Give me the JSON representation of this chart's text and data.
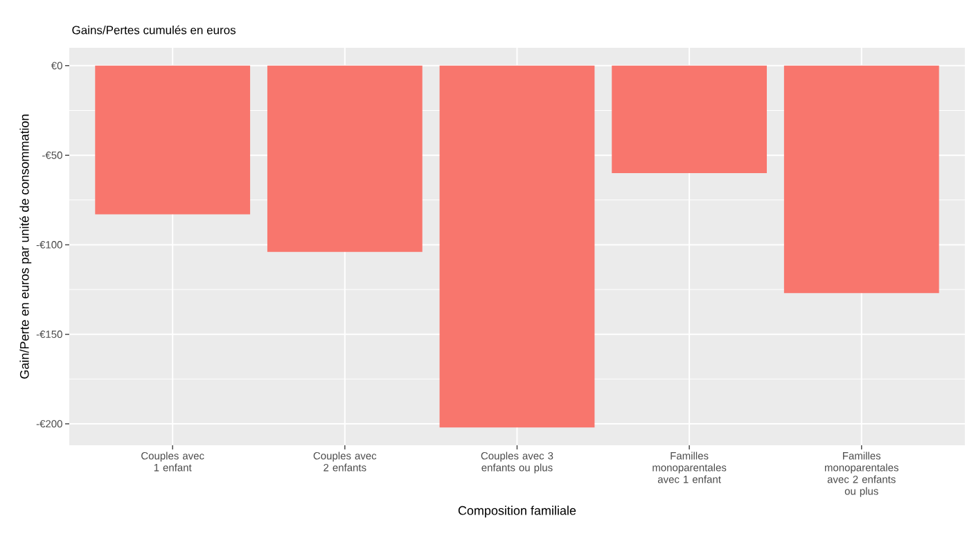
{
  "chart_data": {
    "type": "bar",
    "title": "Gains/Pertes cumulés en euros",
    "xlabel": "Composition familiale",
    "ylabel": "Gain/Perte en euros par unité de consommation",
    "categories": [
      "Couples avec 1 enfant",
      "Couples avec 2 enfants",
      "Couples avec 3 enfants ou plus",
      "Familles monoparentales avec 1 enfant",
      "Familles monoparentales avec 2 enfants ou plus"
    ],
    "values": [
      -83,
      -104,
      -202,
      -60,
      -127
    ],
    "color": "#f8766d",
    "ylim": [
      -212,
      10
    ],
    "yticks": [
      {
        "value": -200,
        "label": "-€200"
      },
      {
        "value": -150,
        "label": "-€150"
      },
      {
        "value": -100,
        "label": "-€100"
      },
      {
        "value": -50,
        "label": "-€50"
      },
      {
        "value": 0,
        "label": "€0"
      }
    ],
    "grid": true
  }
}
